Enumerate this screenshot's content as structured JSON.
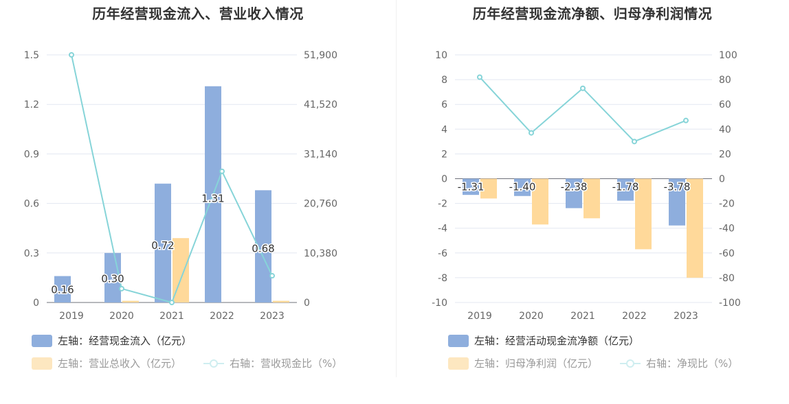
{
  "charts": [
    {
      "title": "历年经营现金流入、营业收入情况",
      "legend": [
        {
          "label": "左轴：经营现金流入（亿元）",
          "kind": "bar",
          "color": "#8eaedd"
        },
        {
          "label": "左轴：营业总收入（亿元）",
          "kind": "bar",
          "color": "#fde7c0"
        },
        {
          "label": "右轴：营收现金比（%）",
          "kind": "line",
          "color": "#cfeef0"
        }
      ]
    },
    {
      "title": "历年经营现金流净额、归母净利润情况",
      "legend": [
        {
          "label": "左轴：经营活动现金流净额（亿元）",
          "kind": "bar",
          "color": "#8eaedd"
        },
        {
          "label": "左轴：归母净利润（亿元）",
          "kind": "bar",
          "color": "#fde7c0"
        },
        {
          "label": "右轴：净现比（%）",
          "kind": "line",
          "color": "#cfeef0"
        }
      ]
    }
  ],
  "chart_data": [
    {
      "type": "bar",
      "title": "历年经营现金流入、营业收入情况",
      "categories": [
        "2019",
        "2020",
        "2021",
        "2022",
        "2023"
      ],
      "left_ticks": [
        "0",
        "0.3",
        "0.6",
        "0.9",
        "1.2",
        "1.5"
      ],
      "right_ticks": [
        "0",
        "10,380",
        "20,760",
        "31,140",
        "41,520",
        "51,900"
      ],
      "ylim_left": [
        0,
        1.5
      ],
      "ylim_right": [
        0,
        51900
      ],
      "grid": true,
      "legend_position": "bottom-left",
      "series": [
        {
          "name": "左轴：经营现金流入（亿元）",
          "kind": "bar",
          "axis": "left",
          "color": "#8eaedd",
          "values": [
            0.16,
            0.3,
            0.72,
            1.31,
            0.68
          ],
          "labels": [
            "0.16",
            "0.30",
            "0.72",
            "1.31",
            "0.68"
          ]
        },
        {
          "name": "左轴：营业总收入（亿元）",
          "kind": "bar",
          "axis": "left",
          "color": "#ffd99a",
          "values": [
            0.0,
            0.01,
            0.39,
            0.0,
            0.01
          ],
          "labels": []
        },
        {
          "name": "右轴：营收现金比（%）",
          "kind": "line",
          "axis": "right",
          "color": "#86d4d8",
          "values": [
            51900,
            2900,
            0,
            27500,
            5600
          ],
          "labels": []
        }
      ]
    },
    {
      "type": "bar",
      "title": "历年经营现金流净额、归母净利润情况",
      "categories": [
        "2019",
        "2020",
        "2021",
        "2022",
        "2023"
      ],
      "left_ticks": [
        "-10",
        "-8",
        "-6",
        "-4",
        "-2",
        "0",
        "2",
        "4",
        "6",
        "8",
        "10"
      ],
      "right_ticks": [
        "-100",
        "-80",
        "-60",
        "-40",
        "-20",
        "0",
        "20",
        "40",
        "60",
        "80",
        "100"
      ],
      "ylim_left": [
        -10,
        10
      ],
      "ylim_right": [
        -100,
        100
      ],
      "grid": true,
      "legend_position": "bottom-left",
      "series": [
        {
          "name": "左轴：经营活动现金流净额（亿元）",
          "kind": "bar",
          "axis": "left",
          "color": "#8eaedd",
          "values": [
            -1.31,
            -1.4,
            -2.38,
            -1.78,
            -3.78
          ],
          "labels": [
            "-1.31",
            "-1.40",
            "-2.38",
            "-1.78",
            "-3.78"
          ]
        },
        {
          "name": "左轴：归母净利润（亿元）",
          "kind": "bar",
          "axis": "left",
          "color": "#ffd99a",
          "values": [
            -1.6,
            -3.7,
            -3.2,
            -5.7,
            -8.0
          ],
          "labels": []
        },
        {
          "name": "右轴：净现比（%）",
          "kind": "line",
          "axis": "right",
          "color": "#86d4d8",
          "values": [
            82,
            37,
            73,
            30,
            47
          ],
          "labels": []
        }
      ]
    }
  ]
}
